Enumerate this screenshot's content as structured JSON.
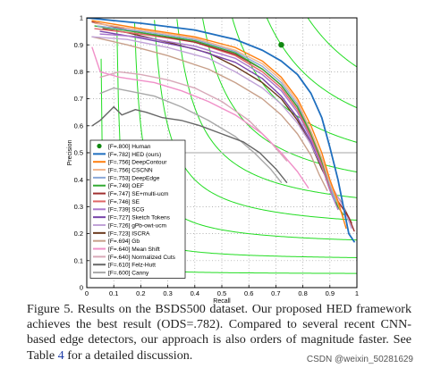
{
  "chart_data": {
    "type": "line",
    "title": "",
    "xlabel": "Recall",
    "ylabel": "Precision",
    "xlim": [
      0,
      1
    ],
    "ylim": [
      0,
      1
    ],
    "xticks": [
      "0",
      "0.1",
      "0.2",
      "0.3",
      "0.4",
      "0.5",
      "0.6",
      "0.7",
      "0.8",
      "0.9",
      "1"
    ],
    "yticks": [
      "0",
      "0.1",
      "0.2",
      "0.3",
      "0.4",
      "0.5",
      "0.6",
      "0.7",
      "0.8",
      "0.9",
      "1"
    ],
    "grid": true,
    "legend_position": "bottom-left",
    "iso_f_color": "#22dd22",
    "human_point": {
      "label": "[F=.800] Human",
      "recall": 0.72,
      "precision": 0.9,
      "color": "#118811"
    },
    "human_level_line": {
      "precision": 0.5,
      "color": "#b8b8b8"
    },
    "iso_f_levels": [
      0.1,
      0.2,
      0.3,
      0.4,
      0.5,
      0.6,
      0.7,
      0.8,
      0.9
    ],
    "series": [
      {
        "name": "[F=.782] HED (ours)",
        "color": "#1f6fbf",
        "width": 1.8,
        "points": [
          [
            0.0,
            1.0
          ],
          [
            0.2,
            0.98
          ],
          [
            0.4,
            0.955
          ],
          [
            0.55,
            0.92
          ],
          [
            0.65,
            0.88
          ],
          [
            0.72,
            0.84
          ],
          [
            0.78,
            0.79
          ],
          [
            0.83,
            0.72
          ],
          [
            0.87,
            0.63
          ],
          [
            0.9,
            0.52
          ],
          [
            0.93,
            0.4
          ],
          [
            0.95,
            0.3
          ],
          [
            0.97,
            0.2
          ],
          [
            0.99,
            0.17
          ]
        ]
      },
      {
        "name": "[F=.756] DeepContour",
        "color": "#ff7f0e",
        "width": 1.4,
        "points": [
          [
            0.02,
            0.99
          ],
          [
            0.2,
            0.96
          ],
          [
            0.4,
            0.93
          ],
          [
            0.55,
            0.89
          ],
          [
            0.65,
            0.84
          ],
          [
            0.72,
            0.78
          ],
          [
            0.78,
            0.7
          ],
          [
            0.83,
            0.6
          ],
          [
            0.87,
            0.5
          ],
          [
            0.9,
            0.4
          ],
          [
            0.93,
            0.32
          ],
          [
            0.96,
            0.22
          ]
        ]
      },
      {
        "name": "[F=.756] CSCNN",
        "color": "#f2b48c",
        "width": 1.4,
        "points": [
          [
            0.03,
            0.98
          ],
          [
            0.2,
            0.955
          ],
          [
            0.4,
            0.925
          ],
          [
            0.55,
            0.88
          ],
          [
            0.65,
            0.83
          ],
          [
            0.72,
            0.77
          ],
          [
            0.78,
            0.69
          ],
          [
            0.83,
            0.58
          ],
          [
            0.87,
            0.48
          ],
          [
            0.9,
            0.39
          ],
          [
            0.93,
            0.31
          ],
          [
            0.95,
            0.26
          ]
        ]
      },
      {
        "name": "[F=.753] DeepEdge",
        "color": "#8aa8d8",
        "width": 1.4,
        "points": [
          [
            0.04,
            0.97
          ],
          [
            0.2,
            0.95
          ],
          [
            0.4,
            0.92
          ],
          [
            0.55,
            0.875
          ],
          [
            0.65,
            0.82
          ],
          [
            0.72,
            0.76
          ],
          [
            0.78,
            0.68
          ],
          [
            0.83,
            0.58
          ],
          [
            0.87,
            0.48
          ],
          [
            0.9,
            0.38
          ],
          [
            0.92,
            0.32
          ]
        ]
      },
      {
        "name": "[F=.749] OEF",
        "color": "#33aa33",
        "width": 1.4,
        "points": [
          [
            0.03,
            0.97
          ],
          [
            0.2,
            0.945
          ],
          [
            0.4,
            0.915
          ],
          [
            0.55,
            0.87
          ],
          [
            0.65,
            0.81
          ],
          [
            0.72,
            0.75
          ],
          [
            0.78,
            0.67
          ],
          [
            0.83,
            0.57
          ],
          [
            0.87,
            0.47
          ],
          [
            0.9,
            0.38
          ],
          [
            0.93,
            0.3
          ],
          [
            0.95,
            0.27
          ]
        ]
      },
      {
        "name": "[F=.747] SE+multi-ucm",
        "color": "#a03030",
        "width": 1.4,
        "points": [
          [
            0.02,
            0.985
          ],
          [
            0.2,
            0.945
          ],
          [
            0.4,
            0.91
          ],
          [
            0.55,
            0.865
          ],
          [
            0.65,
            0.81
          ],
          [
            0.72,
            0.75
          ],
          [
            0.78,
            0.67
          ],
          [
            0.83,
            0.57
          ],
          [
            0.87,
            0.47
          ],
          [
            0.9,
            0.39
          ],
          [
            0.93,
            0.32
          ],
          [
            0.97,
            0.26
          ],
          [
            0.99,
            0.21
          ]
        ]
      },
      {
        "name": "[F=.746] SE",
        "color": "#e06666",
        "width": 1.4,
        "points": [
          [
            0.03,
            0.96
          ],
          [
            0.2,
            0.94
          ],
          [
            0.4,
            0.91
          ],
          [
            0.55,
            0.86
          ],
          [
            0.65,
            0.8
          ],
          [
            0.72,
            0.74
          ],
          [
            0.78,
            0.66
          ],
          [
            0.83,
            0.56
          ],
          [
            0.87,
            0.46
          ],
          [
            0.9,
            0.37
          ],
          [
            0.93,
            0.3
          ],
          [
            0.95,
            0.27
          ]
        ]
      },
      {
        "name": "[F=.739] SCG",
        "color": "#aa77cc",
        "width": 1.4,
        "points": [
          [
            0.05,
            0.94
          ],
          [
            0.2,
            0.93
          ],
          [
            0.4,
            0.895
          ],
          [
            0.55,
            0.85
          ],
          [
            0.65,
            0.79
          ],
          [
            0.72,
            0.73
          ],
          [
            0.78,
            0.65
          ],
          [
            0.83,
            0.55
          ],
          [
            0.87,
            0.45
          ],
          [
            0.9,
            0.36
          ],
          [
            0.93,
            0.29
          ]
        ]
      },
      {
        "name": "[F=.727] Sketch Tokens",
        "color": "#7744aa",
        "width": 1.4,
        "points": [
          [
            0.05,
            0.95
          ],
          [
            0.2,
            0.925
          ],
          [
            0.4,
            0.885
          ],
          [
            0.55,
            0.835
          ],
          [
            0.65,
            0.775
          ],
          [
            0.72,
            0.71
          ],
          [
            0.78,
            0.63
          ],
          [
            0.83,
            0.54
          ],
          [
            0.87,
            0.45
          ],
          [
            0.9,
            0.37
          ],
          [
            0.92,
            0.32
          ]
        ]
      },
      {
        "name": "[F=.726] gPb-owt-ucm",
        "color": "#c1a3d8",
        "width": 1.4,
        "points": [
          [
            0.02,
            0.93
          ],
          [
            0.15,
            0.92
          ],
          [
            0.3,
            0.89
          ],
          [
            0.45,
            0.85
          ],
          [
            0.55,
            0.8
          ],
          [
            0.65,
            0.74
          ],
          [
            0.72,
            0.68
          ],
          [
            0.78,
            0.61
          ],
          [
            0.83,
            0.53
          ],
          [
            0.87,
            0.45
          ],
          [
            0.91,
            0.37
          ],
          [
            0.95,
            0.3
          ],
          [
            0.98,
            0.22
          ]
        ]
      },
      {
        "name": "[F=.723] ISCRA",
        "color": "#6b3a1e",
        "width": 1.4,
        "points": [
          [
            0.06,
            0.96
          ],
          [
            0.15,
            0.945
          ],
          [
            0.3,
            0.91
          ],
          [
            0.45,
            0.87
          ],
          [
            0.55,
            0.82
          ],
          [
            0.65,
            0.76
          ],
          [
            0.72,
            0.7
          ],
          [
            0.78,
            0.62
          ],
          [
            0.83,
            0.53
          ],
          [
            0.87,
            0.44
          ],
          [
            0.9,
            0.38
          ],
          [
            0.94,
            0.32
          ],
          [
            0.98,
            0.24
          ]
        ]
      },
      {
        "name": "[F=.694] Gb",
        "color": "#c8a08a",
        "width": 1.4,
        "points": [
          [
            0.02,
            0.93
          ],
          [
            0.15,
            0.9
          ],
          [
            0.3,
            0.86
          ],
          [
            0.45,
            0.81
          ],
          [
            0.55,
            0.76
          ],
          [
            0.65,
            0.7
          ],
          [
            0.72,
            0.64
          ],
          [
            0.78,
            0.57
          ],
          [
            0.83,
            0.49
          ],
          [
            0.86,
            0.42
          ],
          [
            0.89,
            0.36
          ]
        ]
      },
      {
        "name": "[F=.640] Mean Shift",
        "color": "#f090c8",
        "width": 1.4,
        "points": [
          [
            0.02,
            0.89
          ],
          [
            0.05,
            0.8
          ],
          [
            0.12,
            0.78
          ],
          [
            0.25,
            0.76
          ],
          [
            0.35,
            0.73
          ],
          [
            0.45,
            0.69
          ],
          [
            0.55,
            0.64
          ],
          [
            0.65,
            0.57
          ],
          [
            0.72,
            0.5
          ],
          [
            0.78,
            0.43
          ],
          [
            0.82,
            0.37
          ]
        ]
      },
      {
        "name": "[F=.640] Normalized Cuts",
        "color": "#d8a8b8",
        "width": 1.4,
        "points": [
          [
            0.05,
            0.78
          ],
          [
            0.12,
            0.8
          ],
          [
            0.2,
            0.79
          ],
          [
            0.3,
            0.77
          ],
          [
            0.4,
            0.74
          ],
          [
            0.5,
            0.69
          ],
          [
            0.6,
            0.62
          ],
          [
            0.68,
            0.54
          ],
          [
            0.74,
            0.47
          ]
        ]
      },
      {
        "name": "[F=.610] Felz-Hutt",
        "color": "#666666",
        "width": 1.4,
        "points": [
          [
            0.02,
            0.6
          ],
          [
            0.05,
            0.62
          ],
          [
            0.08,
            0.65
          ],
          [
            0.1,
            0.67
          ],
          [
            0.13,
            0.64
          ],
          [
            0.18,
            0.66
          ],
          [
            0.22,
            0.65
          ],
          [
            0.28,
            0.63
          ],
          [
            0.35,
            0.62
          ],
          [
            0.42,
            0.6
          ],
          [
            0.5,
            0.57
          ],
          [
            0.58,
            0.54
          ],
          [
            0.64,
            0.5
          ],
          [
            0.7,
            0.44
          ],
          [
            0.74,
            0.39
          ]
        ]
      },
      {
        "name": "[F=.600] Canny",
        "color": "#a8a8a8",
        "width": 1.4,
        "points": [
          [
            0.05,
            0.72
          ],
          [
            0.1,
            0.74
          ],
          [
            0.15,
            0.73
          ],
          [
            0.25,
            0.71
          ],
          [
            0.35,
            0.67
          ],
          [
            0.45,
            0.62
          ],
          [
            0.55,
            0.56
          ],
          [
            0.62,
            0.5
          ],
          [
            0.68,
            0.44
          ],
          [
            0.72,
            0.39
          ]
        ]
      }
    ]
  },
  "caption": {
    "figure_label": "Figure 5.",
    "text_1": " Results on the BSDS500 dataset. Our proposed HED framework achieves the best result (ODS=.782). Compared to several recent CNN-based edge detectors, our approach is also orders of magnitude faster. See Table ",
    "table_ref": "4",
    "text_2": " for a detailed discussion."
  },
  "watermark": "CSDN @weixin_50281629"
}
